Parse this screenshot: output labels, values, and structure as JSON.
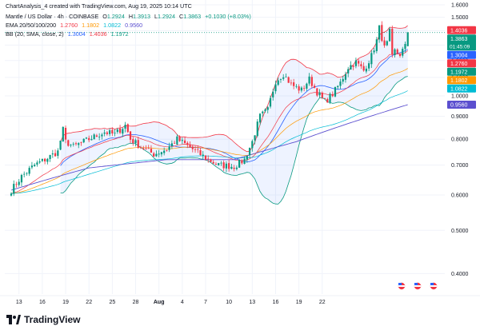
{
  "header": {
    "credit": "ChartAnalysis_4 created with TradingView.com, Aug 19, 2025 10:14 UTC",
    "symbol_line": "Mantle / US Dollar · 4h · COINBASE",
    "ohlc": {
      "o_label": "O",
      "o": "1.2924",
      "h_label": "H",
      "h": "1.3913",
      "l_label": "L",
      "l": "1.2924",
      "c_label": "C",
      "c": "1.3863",
      "change": "+0.1030 (+8.03%)"
    },
    "ema_label": "EMA 20/50/100/200",
    "ema_values": [
      "1.2760",
      "1.1802",
      "1.0822",
      "0.9560"
    ],
    "bb_label": "BB (20, SMA, close, 2)",
    "bb_values": [
      "1.3004",
      "1.4036",
      "1.1972"
    ]
  },
  "brand": {
    "name": "TradingView"
  },
  "colors": {
    "up": "#089981",
    "down": "#f23645",
    "ema20": "#f23645",
    "ema50": "#ff9800",
    "ema100": "#00bcd4",
    "ema200": "#5b4fcf",
    "bb_basis": "#2962ff",
    "bb_upper": "#f23645",
    "bb_lower": "#089981",
    "bb_fill": "#2962ff"
  },
  "chart_data": {
    "type": "candlestick",
    "symbol": "MNT/USD",
    "interval": "4h",
    "x_tick_labels": [
      "13",
      "16",
      "19",
      "22",
      "25",
      "28",
      "Aug",
      "4",
      "7",
      "10",
      "13",
      "16",
      "19",
      "22"
    ],
    "y_tick_labels": [
      "0.4000",
      "0.5000",
      "0.6000",
      "0.7000",
      "0.8000",
      "0.9000",
      "1.0000",
      "1.1000",
      "1.2000",
      "1.3000",
      "1.4000",
      "1.5000",
      "1.6000"
    ],
    "ylim": [
      0.36,
      1.64
    ],
    "y_scale": "log",
    "grid": true,
    "last_price": "1.3863",
    "countdown": "01:45:09",
    "price_labels": [
      {
        "value": 1.4036,
        "text": "1.4036",
        "color": "#f23645"
      },
      {
        "value": 1.3863,
        "text": "1.3863",
        "color": "#089981"
      },
      {
        "value": 1.3004,
        "text": "1.3004",
        "color": "#2962ff"
      },
      {
        "value": 1.276,
        "text": "1.2760",
        "color": "#f23645"
      },
      {
        "value": 1.1972,
        "text": "1.1972",
        "color": "#089981"
      },
      {
        "value": 1.1802,
        "text": "1.1802",
        "color": "#ff9800"
      },
      {
        "value": 1.0822,
        "text": "1.0822",
        "color": "#00bcd4"
      },
      {
        "value": 0.956,
        "text": "0.9560",
        "color": "#5b4fcf"
      }
    ],
    "close_anchors": [
      [
        0,
        0.615
      ],
      [
        4,
        0.66
      ],
      [
        9,
        0.7
      ],
      [
        13,
        0.72
      ],
      [
        18,
        0.75
      ],
      [
        20,
        0.84
      ],
      [
        21,
        0.79
      ],
      [
        24,
        0.77
      ],
      [
        30,
        0.8
      ],
      [
        36,
        0.83
      ],
      [
        40,
        0.82
      ],
      [
        44,
        0.86
      ],
      [
        46,
        0.8
      ],
      [
        50,
        0.77
      ],
      [
        55,
        0.74
      ],
      [
        60,
        0.76
      ],
      [
        64,
        0.8
      ],
      [
        70,
        0.76
      ],
      [
        76,
        0.72
      ],
      [
        80,
        0.7
      ],
      [
        86,
        0.695
      ],
      [
        90,
        0.72
      ],
      [
        93,
        0.79
      ],
      [
        96,
        0.9
      ],
      [
        99,
        0.93
      ],
      [
        102,
        1.08
      ],
      [
        105,
        1.12
      ],
      [
        108,
        1.06
      ],
      [
        112,
        1.03
      ],
      [
        115,
        1.09
      ],
      [
        118,
        1.02
      ],
      [
        121,
        0.97
      ],
      [
        124,
        1.01
      ],
      [
        127,
        1.07
      ],
      [
        130,
        1.16
      ],
      [
        133,
        1.19
      ],
      [
        136,
        1.14
      ],
      [
        139,
        1.23
      ],
      [
        141,
        1.33
      ],
      [
        142,
        1.42
      ],
      [
        143,
        1.35
      ],
      [
        144,
        1.28
      ],
      [
        145,
        1.31
      ],
      [
        146,
        1.39
      ],
      [
        147,
        1.22
      ],
      [
        148,
        1.26
      ],
      [
        150,
        1.24
      ],
      [
        152,
        1.29
      ],
      [
        153,
        1.3863
      ]
    ],
    "ema200_anchors": [
      [
        0,
        0.615
      ],
      [
        30,
        0.69
      ],
      [
        60,
        0.72
      ],
      [
        86,
        0.72
      ],
      [
        110,
        0.79
      ],
      [
        153,
        0.956
      ]
    ],
    "bollinger": {
      "period": 20,
      "mult": 2
    },
    "ema_periods": [
      20,
      50,
      100
    ]
  }
}
